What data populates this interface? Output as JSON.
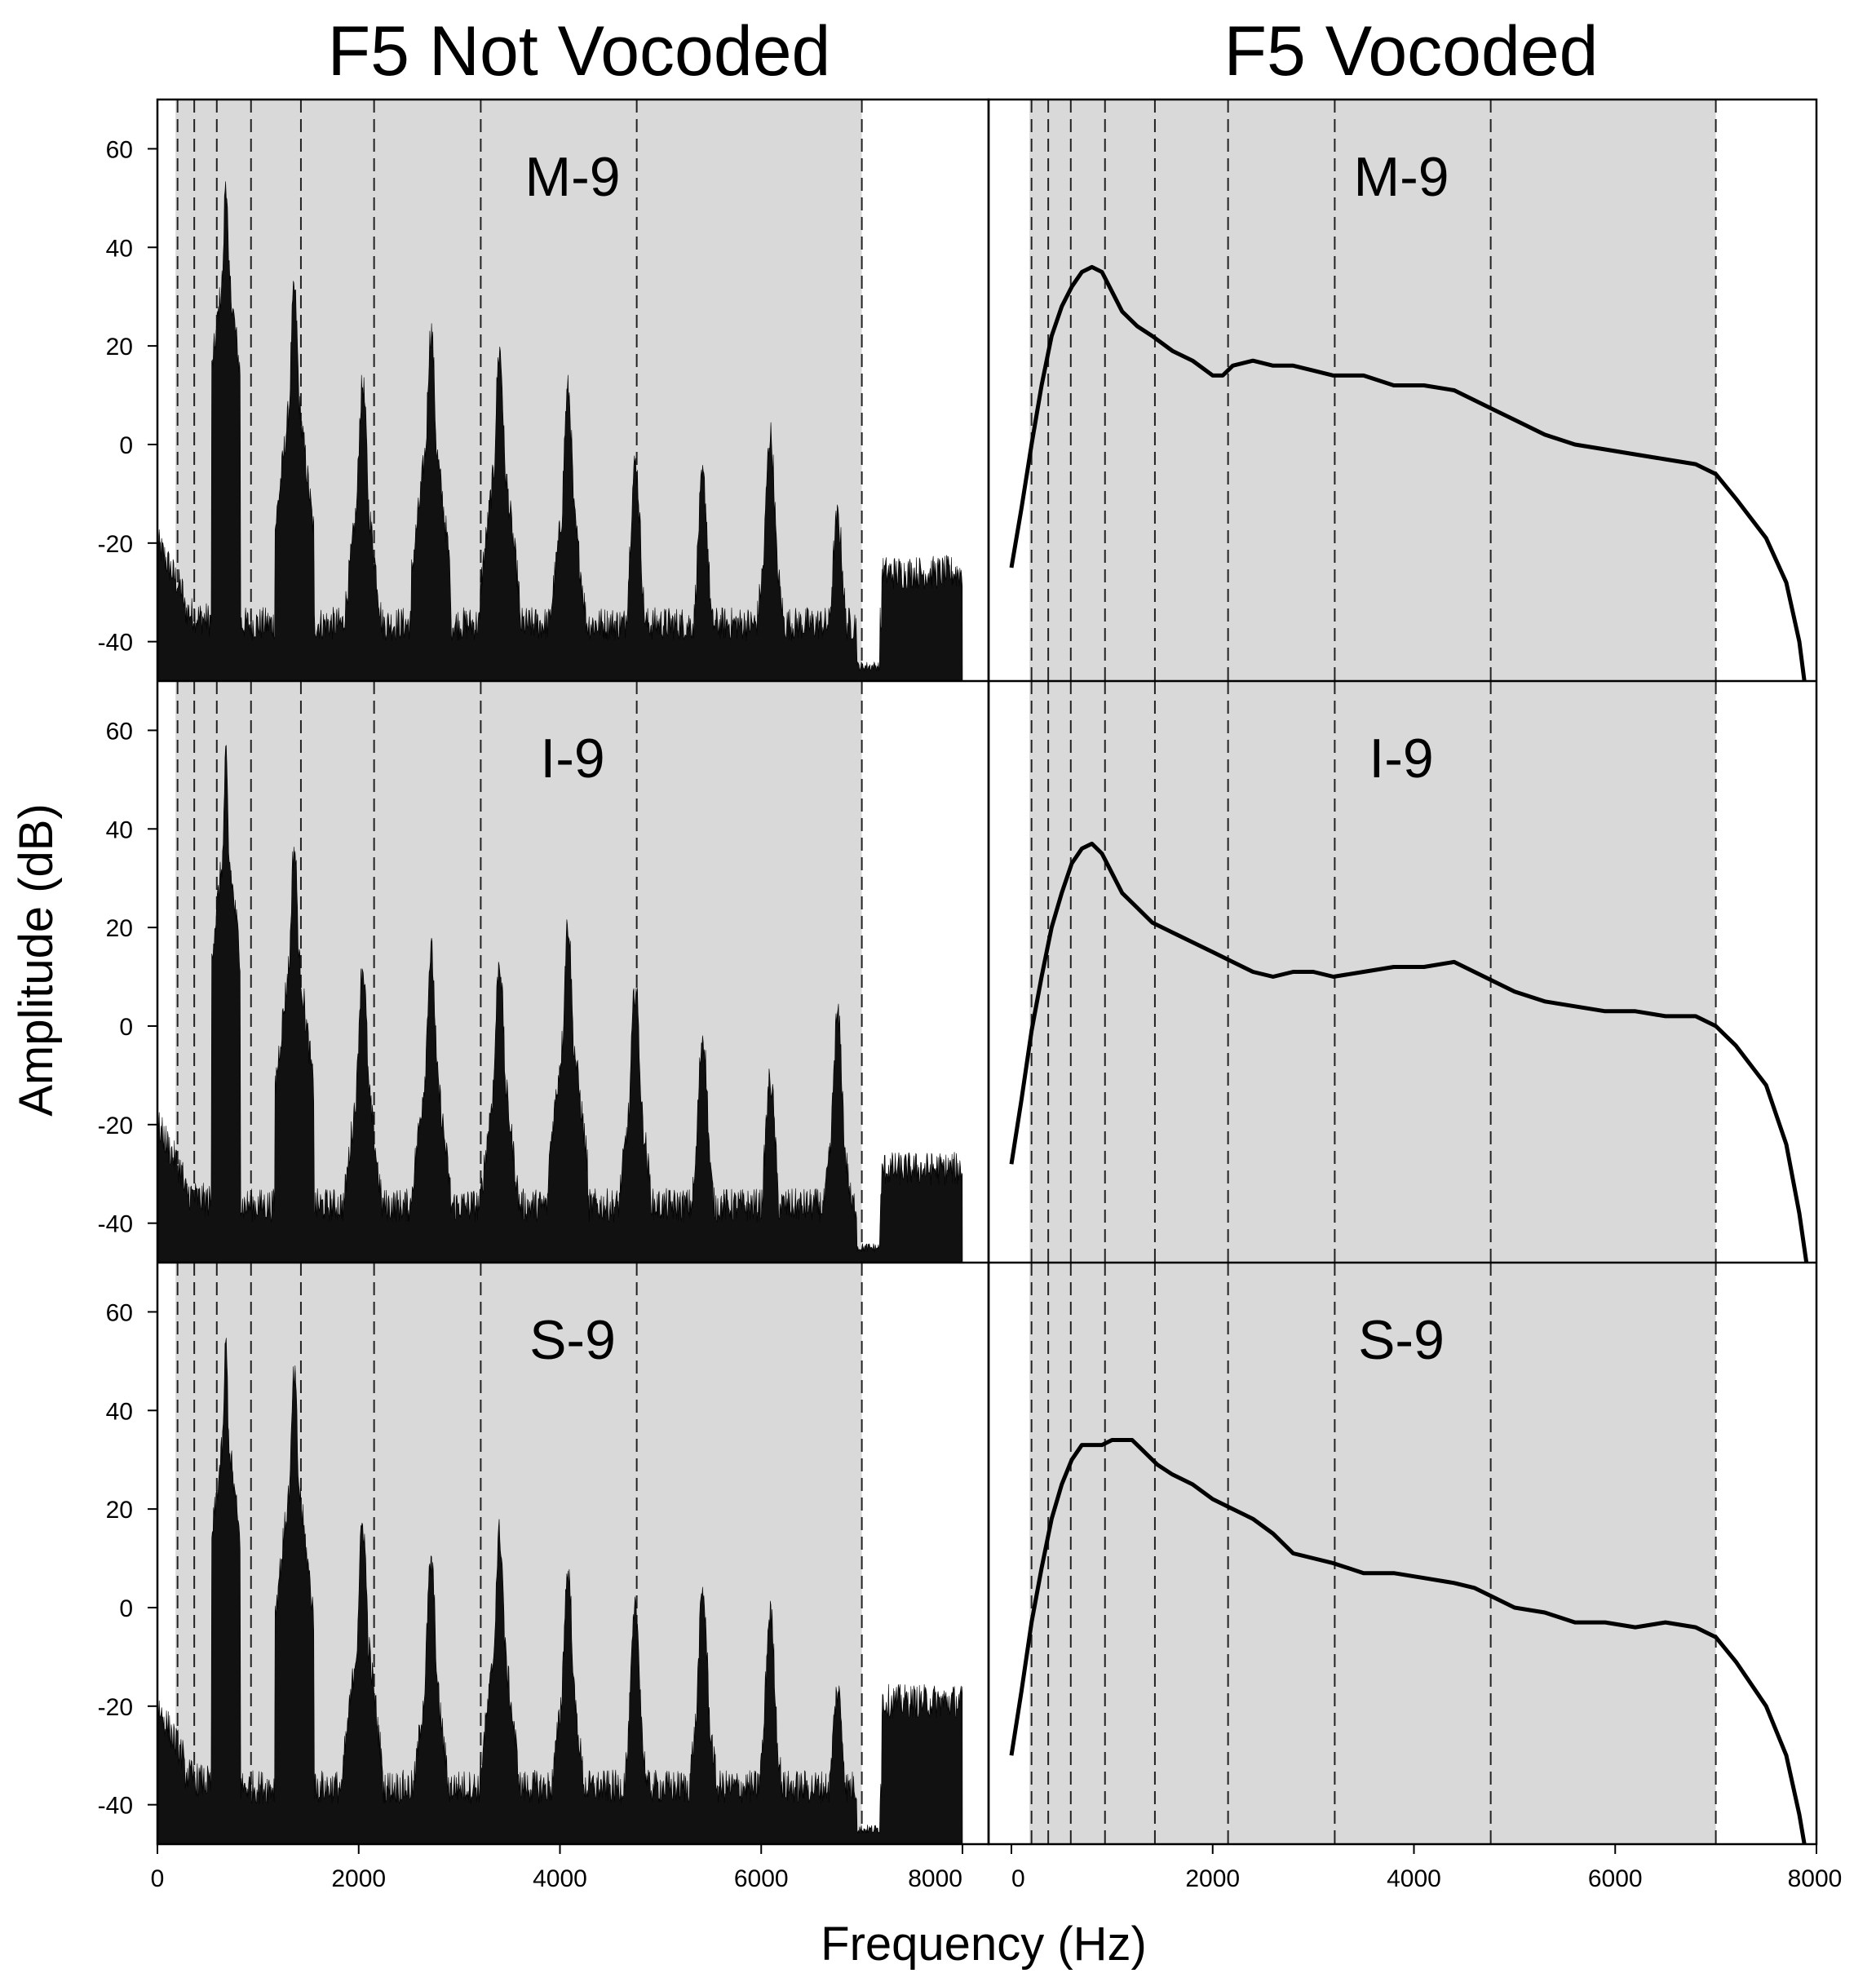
{
  "figure": {
    "col_titles": [
      "F5 Not Vocoded",
      "F5 Vocoded"
    ],
    "xlabel": "Frequency (Hz)",
    "ylabel": "Amplitude (dB)"
  },
  "chart_data": {
    "type": "area",
    "title": "",
    "xlabel": "Frequency (Hz)",
    "ylabel": "Amplitude (dB)",
    "xlim": [
      0,
      8000
    ],
    "ylim": [
      -48,
      70
    ],
    "xticks": [
      0,
      2000,
      4000,
      6000,
      8000
    ],
    "yticks": [
      -40,
      -20,
      0,
      20,
      40,
      60
    ],
    "grid": false,
    "shaded_band_hz": [
      180,
      7000
    ],
    "channel_boundaries_hz": [
      200,
      366,
      590,
      930,
      1426,
      2153,
      3213,
      4763,
      7000
    ],
    "columns": [
      "F5 Not Vocoded",
      "F5 Vocoded"
    ],
    "rows": [
      "M-9",
      "I-9",
      "S-9"
    ],
    "panels": [
      {
        "label": "M-9",
        "column": "F5 Not Vocoded",
        "kind": "spectrum",
        "harmonics_hz": [
          680,
          1360,
          2040,
          2720,
          3400,
          4080,
          4750,
          5420,
          6090,
          6760
        ],
        "harmonic_peaks_db": [
          54,
          31,
          12,
          23,
          19,
          11,
          -4,
          -7,
          2,
          -15
        ],
        "floor": [
          [
            0,
            -28
          ],
          [
            150,
            -32
          ],
          [
            400,
            -35
          ],
          [
            1000,
            -38
          ],
          [
            2000,
            -41
          ],
          [
            3000,
            -43
          ],
          [
            4000,
            -44
          ],
          [
            5000,
            -45
          ],
          [
            6000,
            -46
          ],
          [
            6900,
            -45
          ]
        ],
        "upper_band": {
          "range_hz": [
            7200,
            8000
          ],
          "level_db": -22
        }
      },
      {
        "label": "M-9",
        "column": "F5 Vocoded",
        "kind": "envelope",
        "points": [
          [
            0,
            -25
          ],
          [
            100,
            -13
          ],
          [
            200,
            0
          ],
          [
            300,
            12
          ],
          [
            400,
            22
          ],
          [
            500,
            28
          ],
          [
            600,
            32
          ],
          [
            700,
            35
          ],
          [
            800,
            36
          ],
          [
            900,
            35
          ],
          [
            1000,
            31
          ],
          [
            1100,
            27
          ],
          [
            1250,
            24
          ],
          [
            1400,
            22
          ],
          [
            1600,
            19
          ],
          [
            1800,
            17
          ],
          [
            2000,
            14
          ],
          [
            2100,
            14
          ],
          [
            2200,
            16
          ],
          [
            2400,
            17
          ],
          [
            2600,
            16
          ],
          [
            2800,
            16
          ],
          [
            3000,
            15
          ],
          [
            3200,
            14
          ],
          [
            3500,
            14
          ],
          [
            3800,
            12
          ],
          [
            4100,
            12
          ],
          [
            4400,
            11
          ],
          [
            4600,
            9
          ],
          [
            4800,
            7
          ],
          [
            5000,
            5
          ],
          [
            5300,
            2
          ],
          [
            5600,
            0
          ],
          [
            5900,
            -1
          ],
          [
            6200,
            -2
          ],
          [
            6500,
            -3
          ],
          [
            6800,
            -4
          ],
          [
            7000,
            -6
          ],
          [
            7200,
            -11
          ],
          [
            7500,
            -19
          ],
          [
            7700,
            -28
          ],
          [
            7830,
            -40
          ],
          [
            7880,
            -48
          ]
        ]
      },
      {
        "label": "I-9",
        "column": "F5 Not Vocoded",
        "kind": "spectrum",
        "harmonics_hz": [
          680,
          1360,
          2040,
          2720,
          3400,
          4080,
          4750,
          5420,
          6090,
          6760
        ],
        "harmonic_peaks_db": [
          54,
          36,
          12,
          15,
          13,
          21,
          8,
          -2,
          -11,
          2
        ],
        "floor": [
          [
            0,
            -28
          ],
          [
            150,
            -32
          ],
          [
            400,
            -35
          ],
          [
            1000,
            -38
          ],
          [
            2000,
            -41
          ],
          [
            3000,
            -43
          ],
          [
            4000,
            -44
          ],
          [
            5000,
            -45
          ],
          [
            6000,
            -46
          ],
          [
            6900,
            -45
          ]
        ],
        "upper_band": {
          "range_hz": [
            7200,
            8000
          ],
          "level_db": -25
        }
      },
      {
        "label": "I-9",
        "column": "F5 Vocoded",
        "kind": "envelope",
        "points": [
          [
            0,
            -28
          ],
          [
            100,
            -15
          ],
          [
            200,
            -1
          ],
          [
            300,
            10
          ],
          [
            400,
            20
          ],
          [
            500,
            27
          ],
          [
            600,
            33
          ],
          [
            700,
            36
          ],
          [
            800,
            37
          ],
          [
            900,
            35
          ],
          [
            1000,
            31
          ],
          [
            1100,
            27
          ],
          [
            1250,
            24
          ],
          [
            1400,
            21
          ],
          [
            1600,
            19
          ],
          [
            1800,
            17
          ],
          [
            2000,
            15
          ],
          [
            2200,
            13
          ],
          [
            2400,
            11
          ],
          [
            2600,
            10
          ],
          [
            2800,
            11
          ],
          [
            3000,
            11
          ],
          [
            3200,
            10
          ],
          [
            3500,
            11
          ],
          [
            3800,
            12
          ],
          [
            4100,
            12
          ],
          [
            4400,
            13
          ],
          [
            4600,
            11
          ],
          [
            4800,
            9
          ],
          [
            5000,
            7
          ],
          [
            5300,
            5
          ],
          [
            5600,
            4
          ],
          [
            5900,
            3
          ],
          [
            6200,
            3
          ],
          [
            6500,
            2
          ],
          [
            6800,
            2
          ],
          [
            7000,
            0
          ],
          [
            7200,
            -4
          ],
          [
            7500,
            -12
          ],
          [
            7700,
            -24
          ],
          [
            7830,
            -38
          ],
          [
            7900,
            -48
          ]
        ]
      },
      {
        "label": "S-9",
        "column": "F5 Not Vocoded",
        "kind": "spectrum",
        "harmonics_hz": [
          680,
          1360,
          2040,
          2720,
          3400,
          4080,
          4750,
          5420,
          6090,
          6760
        ],
        "harmonic_peaks_db": [
          53,
          47,
          17,
          9,
          15,
          7,
          -1,
          3,
          -1,
          -17
        ],
        "floor": [
          [
            0,
            -28
          ],
          [
            150,
            -32
          ],
          [
            400,
            -35
          ],
          [
            1000,
            -38
          ],
          [
            2000,
            -41
          ],
          [
            3000,
            -43
          ],
          [
            4000,
            -44
          ],
          [
            5000,
            -45
          ],
          [
            6000,
            -46
          ],
          [
            6900,
            -45
          ]
        ],
        "upper_band": {
          "range_hz": [
            7200,
            8000
          ],
          "level_db": -15
        }
      },
      {
        "label": "S-9",
        "column": "F5 Vocoded",
        "kind": "envelope",
        "points": [
          [
            0,
            -30
          ],
          [
            100,
            -17
          ],
          [
            200,
            -3
          ],
          [
            300,
            8
          ],
          [
            400,
            18
          ],
          [
            500,
            25
          ],
          [
            600,
            30
          ],
          [
            700,
            33
          ],
          [
            800,
            33
          ],
          [
            900,
            33
          ],
          [
            1000,
            34
          ],
          [
            1100,
            34
          ],
          [
            1200,
            34
          ],
          [
            1300,
            32
          ],
          [
            1450,
            29
          ],
          [
            1600,
            27
          ],
          [
            1800,
            25
          ],
          [
            2000,
            22
          ],
          [
            2200,
            20
          ],
          [
            2400,
            18
          ],
          [
            2600,
            15
          ],
          [
            2800,
            11
          ],
          [
            3000,
            10
          ],
          [
            3200,
            9
          ],
          [
            3500,
            7
          ],
          [
            3800,
            7
          ],
          [
            4100,
            6
          ],
          [
            4400,
            5
          ],
          [
            4600,
            4
          ],
          [
            4800,
            2
          ],
          [
            5000,
            0
          ],
          [
            5300,
            -1
          ],
          [
            5600,
            -3
          ],
          [
            5900,
            -3
          ],
          [
            6200,
            -4
          ],
          [
            6500,
            -3
          ],
          [
            6800,
            -4
          ],
          [
            7000,
            -6
          ],
          [
            7200,
            -11
          ],
          [
            7500,
            -20
          ],
          [
            7700,
            -30
          ],
          [
            7830,
            -42
          ],
          [
            7880,
            -48
          ]
        ]
      }
    ]
  }
}
